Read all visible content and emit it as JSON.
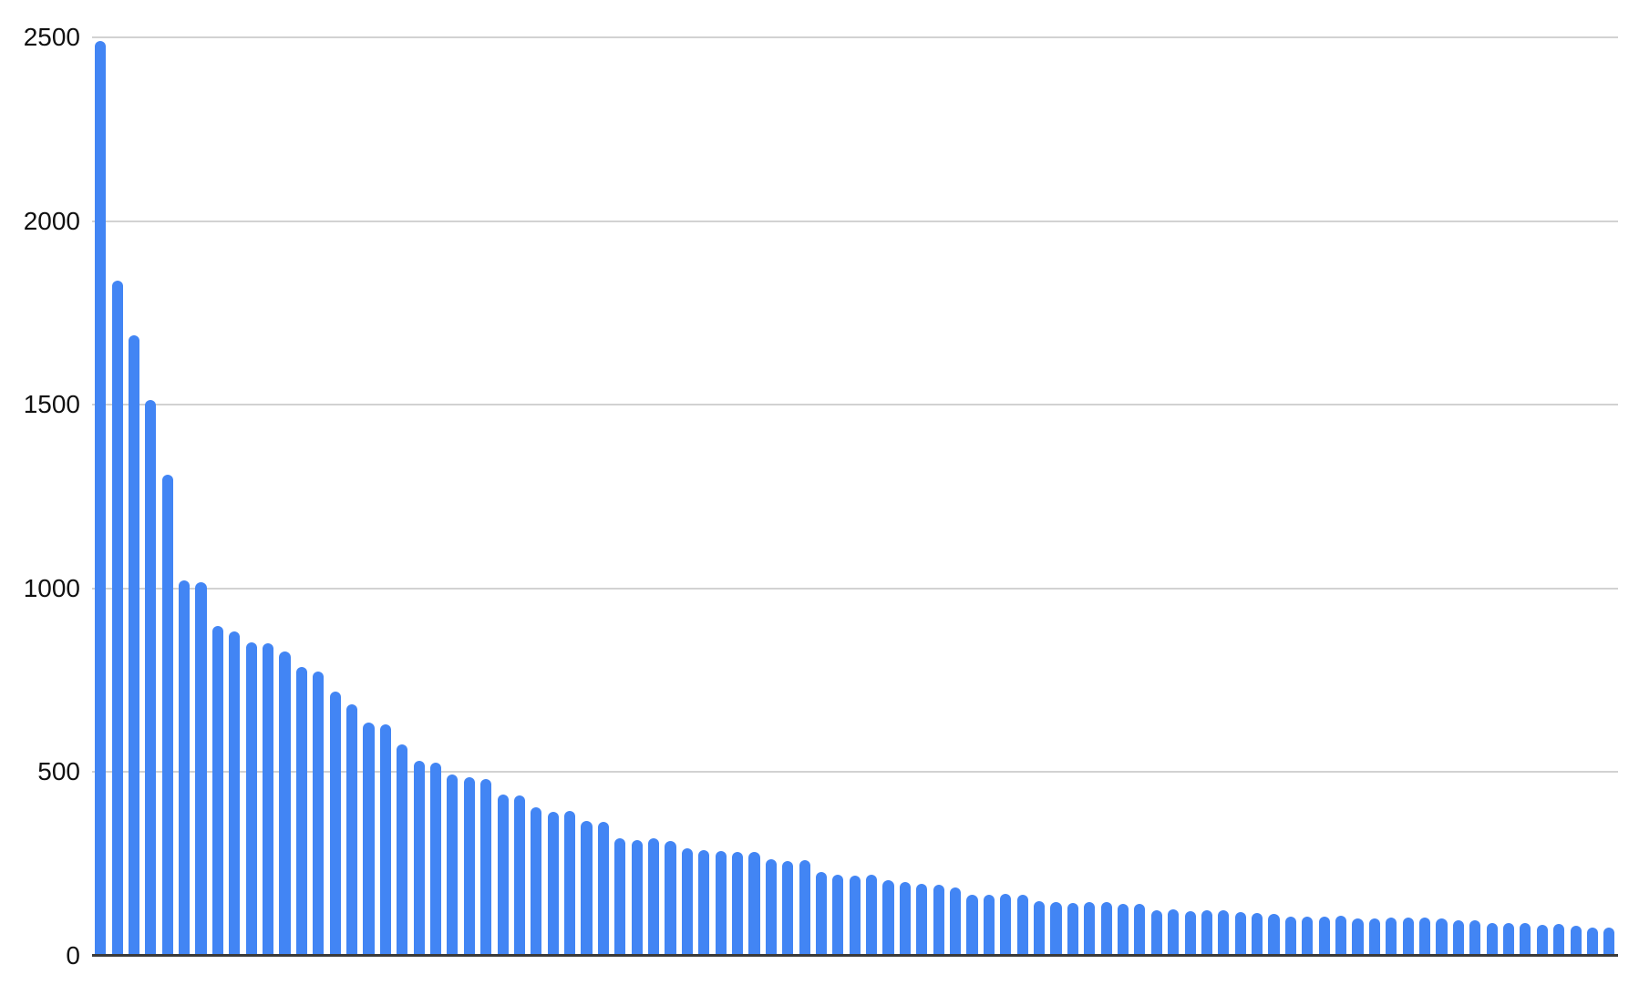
{
  "chart_data": {
    "type": "bar",
    "title": "",
    "xlabel": "",
    "ylabel": "",
    "legend": "none",
    "grid": "horizontal",
    "ylim": [
      0,
      2500
    ],
    "y_ticks": [
      0,
      500,
      1000,
      1500,
      2000,
      2500
    ],
    "y_tick_labels": [
      "0",
      "500",
      "1000",
      "1500",
      "2000",
      "2500"
    ],
    "x_tick_labels": [],
    "bar_count": 91,
    "values": [
      2490,
      1839,
      1688,
      1512,
      1309,
      1022,
      1016,
      898,
      884,
      854,
      850,
      828,
      786,
      774,
      719,
      685,
      636,
      631,
      576,
      532,
      526,
      493,
      486,
      481,
      440,
      436,
      404,
      393,
      394,
      367,
      364,
      321,
      316,
      319,
      312,
      293,
      288,
      285,
      284,
      283,
      264,
      257,
      260,
      229,
      220,
      218,
      220,
      205,
      202,
      195,
      194,
      187,
      167,
      166,
      168,
      166,
      150,
      146,
      145,
      146,
      146,
      142,
      141,
      124,
      126,
      121,
      124,
      123,
      119,
      117,
      115,
      106,
      107,
      107,
      109,
      102,
      101,
      103,
      104,
      103,
      102,
      98,
      97,
      90,
      89,
      89,
      85,
      86,
      83,
      78,
      78
    ],
    "colors": {
      "bar": "#4285f4",
      "gridline": "#d2d2d2",
      "axis_line": "#3b3b3b",
      "tick_label": "#111111",
      "background": "#ffffff"
    },
    "bar_width_fraction": 0.66
  }
}
